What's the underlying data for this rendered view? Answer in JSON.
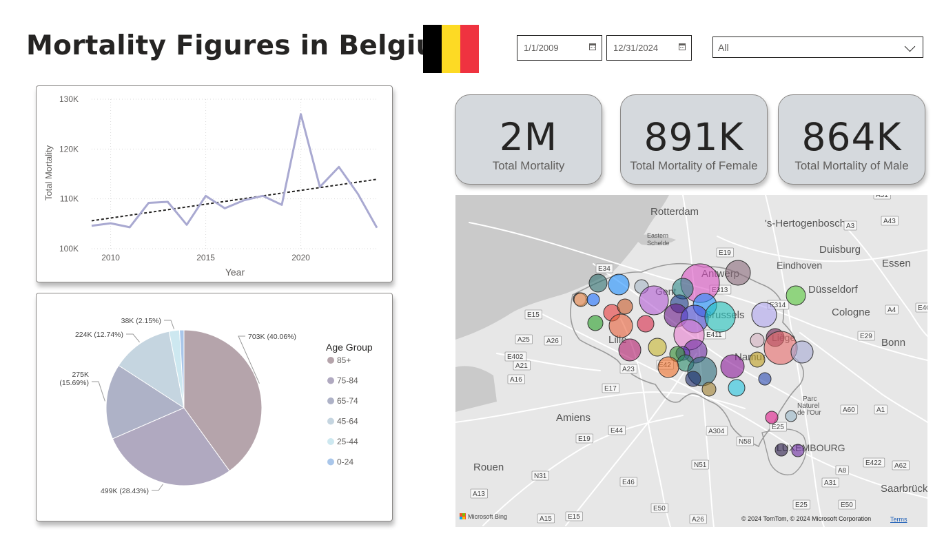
{
  "header": {
    "title": "Mortality Figures in Belgium"
  },
  "flag": {
    "colors": [
      "#000000",
      "#fdda24",
      "#ef3340"
    ]
  },
  "filters": {
    "start_date": "1/1/2009",
    "end_date": "12/31/2024",
    "dropdown_value": "All"
  },
  "kpis": [
    {
      "value": "2M",
      "label": "Total Mortality"
    },
    {
      "value": "891K",
      "label": "Total Mortality of Female"
    },
    {
      "value": "864K",
      "label": "Total Mortality of Male"
    }
  ],
  "chart_data": [
    {
      "type": "line",
      "xlabel": "Year",
      "ylabel": "Total Mortality",
      "x_ticks": [
        "2010",
        "2015",
        "2020"
      ],
      "y_ticks": [
        "100K",
        "110K",
        "120K",
        "130K"
      ],
      "xlim": [
        2009,
        2024
      ],
      "ylim": [
        100000,
        130000
      ],
      "trendline": true,
      "color": "#a9a9d1",
      "x": [
        2009,
        2010,
        2011,
        2012,
        2013,
        2014,
        2015,
        2016,
        2017,
        2018,
        2019,
        2020,
        2021,
        2022,
        2023,
        2024
      ],
      "values": [
        104600,
        105100,
        104300,
        109200,
        109400,
        104800,
        110600,
        108100,
        109700,
        110600,
        108800,
        127000,
        112400,
        116400,
        111000,
        104200
      ]
    },
    {
      "type": "pie",
      "legend_title": "Age Group",
      "legend_position": "right",
      "categories": [
        "85+",
        "75-84",
        "65-74",
        "45-64",
        "25-44",
        "0-24"
      ],
      "values": [
        703000,
        499000,
        275000,
        224000,
        38000,
        16000
      ],
      "colors": [
        "#b5a4ab",
        "#b0a9c0",
        "#aeb2c7",
        "#c5d5e0",
        "#cde8f0",
        "#a9c6ea"
      ],
      "data_labels": [
        "703K (40.06%)",
        "499K (28.43%)",
        "275K (15.69%)",
        "224K (12.74%)",
        "38K (2.15%)",
        ""
      ]
    }
  ],
  "map": {
    "place_labels": [
      "Rotterdam",
      "'s-Hertogenbosch",
      "Duisburg",
      "Eindhoven",
      "Essen",
      "Antwerp",
      "Düsseldorf",
      "Gent",
      "Brussels",
      "Cologne",
      "Bonn",
      "Liège",
      "Lille",
      "Namur",
      "Amiens",
      "Rouen",
      "Parc Naturel de l'Our",
      "LUXEMBOURG",
      "Saarbrück",
      "Eastern Scheldt"
    ],
    "road_labels": [
      "A31",
      "A3",
      "A43",
      "E19",
      "E313",
      "E314",
      "A4",
      "E40",
      "E15",
      "A26",
      "A25",
      "E42",
      "E29",
      "E402",
      "A21",
      "A23",
      "A16",
      "E17",
      "E44",
      "A60",
      "A1",
      "E25",
      "N58",
      "A304",
      "E19",
      "N31",
      "N51",
      "E46",
      "A8",
      "E422",
      "A62",
      "A31",
      "A13",
      "E50",
      "E15",
      "A15",
      "A26",
      "E25",
      "E50",
      "E411",
      "E34"
    ],
    "attribution": "© 2024 TomTom, © 2024 Microsoft Corporation",
    "terms_link": "Terms",
    "logo_text": "Microsoft Bing"
  }
}
